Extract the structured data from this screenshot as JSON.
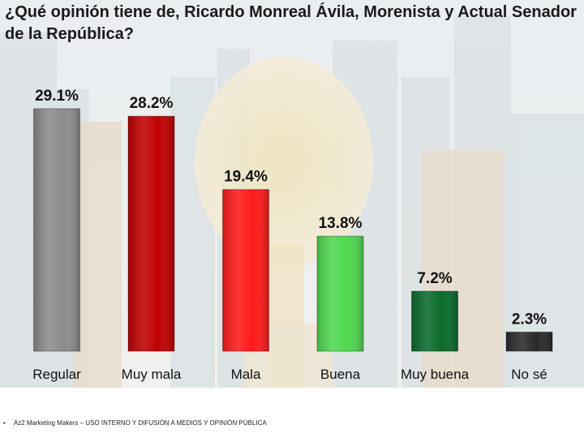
{
  "slide": {
    "title": "¿Qué opinión tiene de, Ricardo Monreal Ávila, Morenista y Actual Senador de la República?",
    "footer_bullet": "•",
    "footer_text": "Az2 Marketing Makers – USO INTERNO Y DIFUSIÓN A MEDIOS Y OPINIÓN PÚBLICA"
  },
  "chart_data": {
    "type": "bar",
    "title": "¿Qué opinión tiene de, Ricardo Monreal Ávila, Morenista y Actual Senador de la República?",
    "categories": [
      "Regular",
      "Muy mala",
      "Mala",
      "Buena",
      "Muy buena",
      "No sé"
    ],
    "values": [
      29.1,
      28.2,
      19.4,
      13.8,
      7.2,
      2.3
    ],
    "value_labels": [
      "29.1%",
      "28.2%",
      "19.4%",
      "13.8%",
      "7.2%",
      "2.3%"
    ],
    "colors": [
      "#8c8c8c",
      "#c00000",
      "#ff1a1a",
      "#4fd84f",
      "#0a6b2c",
      "#2a2a2a"
    ],
    "unit": "%",
    "xlabel": "",
    "ylabel": "",
    "ylim": [
      0,
      29.1
    ],
    "grid": false,
    "legend": "none"
  }
}
